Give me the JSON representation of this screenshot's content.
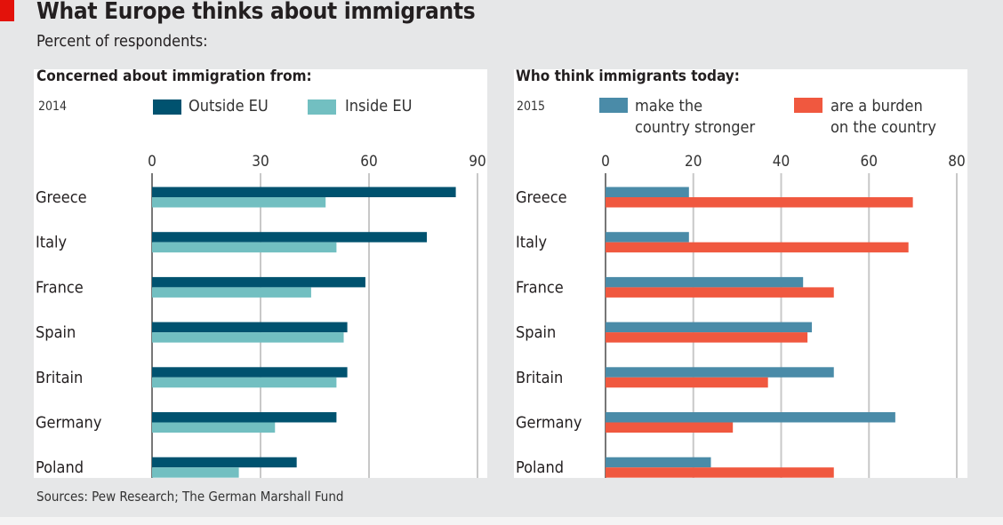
{
  "title": "What Europe thinks about immigrants",
  "subtitle": "Percent of respondents:",
  "source": "Sources: Pew Research; The German Marshall Fund",
  "chart_data": [
    {
      "type": "bar",
      "orientation": "horizontal",
      "title": "Concerned about immigration from:",
      "note": "2014",
      "categories": [
        "Greece",
        "Italy",
        "France",
        "Spain",
        "Britain",
        "Germany",
        "Poland"
      ],
      "xlim": [
        0,
        90
      ],
      "ticks": [
        0,
        30,
        60,
        90
      ],
      "grid": true,
      "legend": "top",
      "series": [
        {
          "name": "Outside EU",
          "color": "#00526f",
          "values": [
            84,
            76,
            59,
            54,
            54,
            51,
            40
          ]
        },
        {
          "name": "Inside EU",
          "color": "#72bfc1",
          "values": [
            48,
            51,
            44,
            53,
            51,
            34,
            24
          ]
        }
      ]
    },
    {
      "type": "bar",
      "orientation": "horizontal",
      "title": "Who think immigrants today:",
      "note": "2015",
      "categories": [
        "Greece",
        "Italy",
        "France",
        "Spain",
        "Britain",
        "Germany",
        "Poland"
      ],
      "xlim": [
        0,
        80
      ],
      "ticks": [
        0,
        20,
        40,
        60,
        80
      ],
      "grid": true,
      "legend": "top",
      "series": [
        {
          "name": "make the country stronger",
          "name_lines": [
            "make the",
            "country stronger"
          ],
          "color": "#4a8ba8",
          "values": [
            19,
            19,
            45,
            47,
            52,
            66,
            24
          ]
        },
        {
          "name": "are a burden on the country",
          "name_lines": [
            "are a burden",
            "on the country"
          ],
          "color": "#f0583f",
          "values": [
            70,
            69,
            52,
            46,
            37,
            29,
            52
          ]
        }
      ]
    }
  ]
}
